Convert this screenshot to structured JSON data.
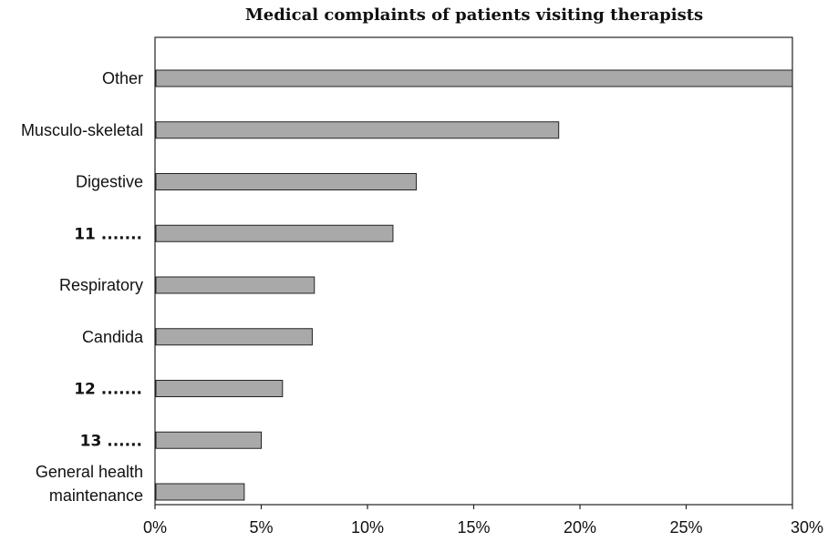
{
  "chart_data": {
    "type": "bar",
    "orientation": "horizontal",
    "title": "Medical complaints of patients visiting therapists",
    "categories": [
      "Other",
      "Musculo-skeletal",
      "Digestive",
      "11 .......",
      "Respiratory",
      "Candida",
      "12 .......",
      "13 ......",
      "General health maintenance"
    ],
    "category_lines": [
      [
        "Other"
      ],
      [
        "Musculo-skeletal"
      ],
      [
        "Digestive"
      ],
      [
        "11 ......."
      ],
      [
        "Respiratory"
      ],
      [
        "Candida"
      ],
      [
        "12 ......."
      ],
      [
        "13 ......"
      ],
      [
        "General health",
        "maintenance"
      ]
    ],
    "numbered_gap": [
      false,
      false,
      false,
      true,
      false,
      false,
      true,
      true,
      false
    ],
    "values": [
      30,
      19,
      12.3,
      11.2,
      7.5,
      7.4,
      6,
      5,
      4.2
    ],
    "xlim": [
      0,
      30
    ],
    "x_ticks": [
      "0%",
      "5%",
      "10%",
      "15%",
      "20%",
      "25%",
      "30%"
    ],
    "x_tick_values": [
      0,
      5,
      10,
      15,
      20,
      25,
      30
    ],
    "unit": "%",
    "grid": false,
    "bar_color": "#a9a9a9"
  }
}
